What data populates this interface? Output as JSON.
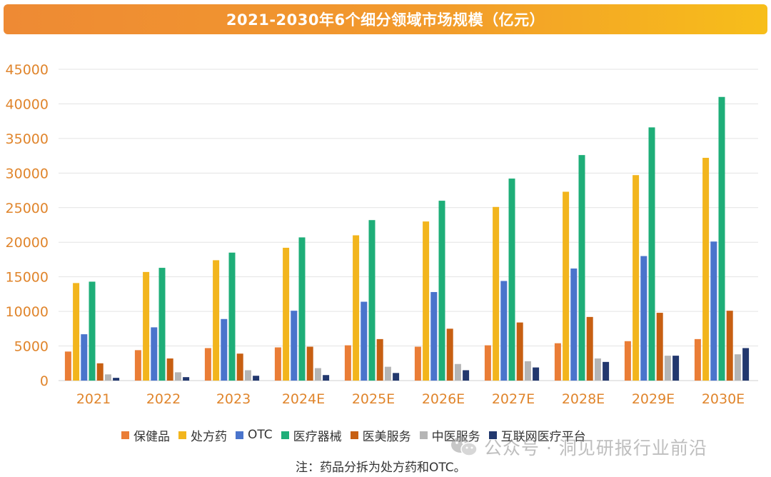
{
  "chart_data": {
    "type": "bar",
    "title": "2021-2030年6个细分领域市场规模（亿元）",
    "xlabel": "",
    "ylabel": "",
    "ylim": [
      0,
      45000
    ],
    "yticks": [
      0,
      5000,
      10000,
      15000,
      20000,
      25000,
      30000,
      35000,
      40000,
      45000
    ],
    "grid": true,
    "legend_position": "bottom",
    "categories": [
      "2021",
      "2022",
      "2023",
      "2024E",
      "2025E",
      "2026E",
      "2027E",
      "2028E",
      "2029E",
      "2030E"
    ],
    "series": [
      {
        "name": "保健品",
        "color": "#ea7d36",
        "values": [
          4200,
          4400,
          4700,
          4800,
          5100,
          4900,
          5100,
          5400,
          5700,
          6000
        ]
      },
      {
        "name": "处方药",
        "color": "#f2b51d",
        "values": [
          14100,
          15700,
          17400,
          19200,
          21000,
          23000,
          25100,
          27300,
          29700,
          32200
        ]
      },
      {
        "name": "OTC",
        "color": "#4a74cc",
        "values": [
          6700,
          7700,
          8900,
          10100,
          11400,
          12800,
          14400,
          16200,
          18000,
          20100
        ]
      },
      {
        "name": "医疗器械",
        "color": "#1eae78",
        "values": [
          14300,
          16300,
          18500,
          20700,
          23200,
          26000,
          29200,
          32600,
          36600,
          41000
        ]
      },
      {
        "name": "医美服务",
        "color": "#c75f12",
        "values": [
          2500,
          3200,
          3900,
          4900,
          6000,
          7500,
          8400,
          9200,
          9800,
          10100
        ]
      },
      {
        "name": "中医服务",
        "color": "#b5b5b5",
        "values": [
          900,
          1200,
          1500,
          1800,
          2000,
          2400,
          2800,
          3200,
          3600,
          3800
        ]
      },
      {
        "name": "互联网医疗平台",
        "color": "#22386e",
        "values": [
          400,
          500,
          700,
          800,
          1100,
          1500,
          1900,
          2700,
          3600,
          4700
        ]
      }
    ]
  },
  "note": "注：药品分拆为处方药和OTC。",
  "watermark": "公众号 · 洞见研报行业前沿",
  "colors": {
    "axis_text": "#e0852c",
    "grid": "#e3e3e3"
  }
}
